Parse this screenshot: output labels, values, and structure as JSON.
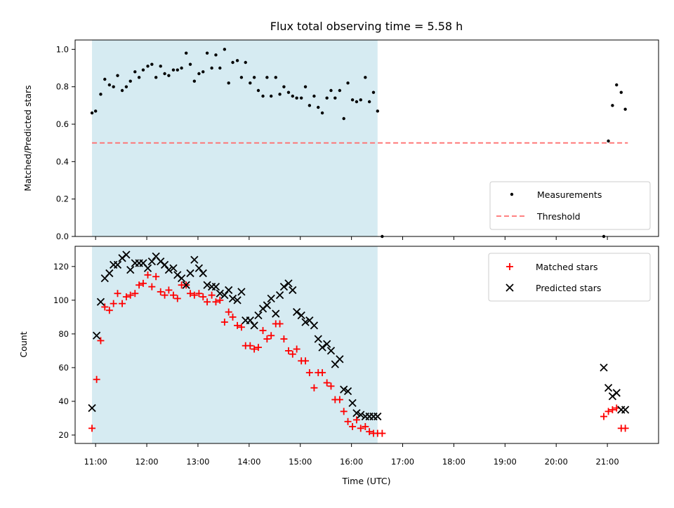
{
  "chart_data": [
    {
      "type": "scatter",
      "title": "Flux total observing time = 5.58 h",
      "xlabel": "",
      "ylabel": "Matched/Predicted stars",
      "ylim": [
        0,
        1.05
      ],
      "yticks": [
        0.0,
        0.2,
        0.4,
        0.6,
        0.8,
        1.0
      ],
      "xlim": [
        10.6,
        22.0
      ],
      "grid": false,
      "legend": "lower-right",
      "shaded_span": [
        10.93,
        16.51
      ],
      "shade_color": "#add8e6",
      "series": [
        {
          "name": "Measurements",
          "color": "#000000",
          "marker": "dot",
          "x": [
            10.93,
            11.0,
            11.1,
            11.18,
            11.27,
            11.35,
            11.43,
            11.52,
            11.6,
            11.68,
            11.77,
            11.85,
            11.93,
            12.02,
            12.1,
            12.18,
            12.27,
            12.35,
            12.43,
            12.52,
            12.6,
            12.68,
            12.77,
            12.85,
            12.93,
            13.02,
            13.1,
            13.18,
            13.27,
            13.35,
            13.43,
            13.52,
            13.6,
            13.68,
            13.77,
            13.85,
            13.93,
            14.02,
            14.1,
            14.18,
            14.27,
            14.35,
            14.43,
            14.52,
            14.6,
            14.68,
            14.77,
            14.85,
            14.93,
            15.02,
            15.1,
            15.18,
            15.27,
            15.35,
            15.43,
            15.52,
            15.6,
            15.68,
            15.77,
            15.85,
            15.93,
            16.02,
            16.1,
            16.18,
            16.27,
            16.35,
            16.43,
            16.51,
            16.6,
            20.93,
            21.02,
            21.1,
            21.18,
            21.27,
            21.35
          ],
          "y": [
            0.66,
            0.67,
            0.76,
            0.84,
            0.81,
            0.8,
            0.86,
            0.78,
            0.8,
            0.83,
            0.88,
            0.85,
            0.89,
            0.91,
            0.92,
            0.85,
            0.91,
            0.87,
            0.86,
            0.89,
            0.89,
            0.9,
            0.98,
            0.92,
            0.83,
            0.87,
            0.88,
            0.98,
            0.9,
            0.97,
            0.9,
            1.0,
            0.82,
            0.93,
            0.94,
            0.85,
            0.93,
            0.82,
            0.85,
            0.78,
            0.75,
            0.85,
            0.75,
            0.85,
            0.76,
            0.8,
            0.77,
            0.75,
            0.74,
            0.74,
            0.8,
            0.7,
            0.75,
            0.69,
            0.66,
            0.74,
            0.78,
            0.74,
            0.78,
            0.63,
            0.82,
            0.73,
            0.72,
            0.73,
            0.85,
            0.72,
            0.77,
            0.67,
            0.0,
            0.0,
            0.51,
            0.7,
            0.81,
            0.77,
            0.68
          ]
        },
        {
          "name": "Threshold",
          "color": "#ff7070",
          "style": "dashed",
          "x": [
            10.93,
            21.4
          ],
          "y": [
            0.5,
            0.5
          ]
        }
      ]
    },
    {
      "type": "scatter",
      "title": "",
      "xlabel": "Time (UTC)",
      "ylabel": "Count",
      "ylim": [
        15,
        132
      ],
      "yticks": [
        20,
        40,
        60,
        80,
        100,
        120
      ],
      "xlim": [
        10.6,
        22.0
      ],
      "xticks": [
        11,
        12,
        13,
        14,
        15,
        16,
        17,
        18,
        19,
        20,
        21
      ],
      "xtick_labels": [
        "11:00",
        "12:00",
        "13:00",
        "14:00",
        "15:00",
        "16:00",
        "17:00",
        "18:00",
        "19:00",
        "20:00",
        "21:00"
      ],
      "grid": false,
      "legend": "upper-right",
      "shaded_span": [
        10.93,
        16.51
      ],
      "shade_color": "#add8e6",
      "series": [
        {
          "name": "Matched stars",
          "color": "#ff0000",
          "marker": "plus",
          "x": [
            10.93,
            11.02,
            11.1,
            11.18,
            11.27,
            11.35,
            11.43,
            11.52,
            11.6,
            11.68,
            11.77,
            11.85,
            11.93,
            12.02,
            12.1,
            12.18,
            12.27,
            12.35,
            12.43,
            12.52,
            12.6,
            12.68,
            12.77,
            12.85,
            12.93,
            13.02,
            13.1,
            13.18,
            13.27,
            13.35,
            13.43,
            13.52,
            13.6,
            13.68,
            13.77,
            13.85,
            13.93,
            14.02,
            14.1,
            14.18,
            14.27,
            14.35,
            14.43,
            14.52,
            14.6,
            14.68,
            14.77,
            14.85,
            14.93,
            15.02,
            15.1,
            15.18,
            15.27,
            15.35,
            15.43,
            15.52,
            15.6,
            15.68,
            15.77,
            15.85,
            15.93,
            16.02,
            16.1,
            16.18,
            16.27,
            16.35,
            16.43,
            16.51,
            16.6,
            20.93,
            21.02,
            21.1,
            21.18,
            21.27,
            21.35
          ],
          "y": [
            24,
            53,
            76,
            96,
            94,
            98,
            104,
            98,
            102,
            103,
            104,
            109,
            110,
            115,
            108,
            114,
            105,
            103,
            106,
            103,
            101,
            109,
            109,
            104,
            103,
            104,
            102,
            99,
            103,
            99,
            100,
            87,
            93,
            90,
            85,
            84,
            73,
            73,
            71,
            72,
            82,
            77,
            79,
            86,
            86,
            77,
            70,
            68,
            71,
            64,
            64,
            57,
            48,
            57,
            57,
            51,
            49,
            41,
            41,
            34,
            28,
            25,
            29,
            24,
            25,
            22,
            21,
            21,
            21,
            31,
            34,
            35,
            36,
            24,
            24
          ],
          "visible_x_subset_note": ""
        },
        {
          "name": "Predicted stars",
          "color": "#000000",
          "marker": "x",
          "x": [
            10.93,
            11.02,
            11.1,
            11.18,
            11.27,
            11.35,
            11.43,
            11.52,
            11.6,
            11.68,
            11.77,
            11.85,
            11.93,
            12.02,
            12.1,
            12.18,
            12.27,
            12.35,
            12.43,
            12.52,
            12.6,
            12.68,
            12.77,
            12.85,
            12.93,
            13.02,
            13.1,
            13.18,
            13.27,
            13.35,
            13.43,
            13.52,
            13.6,
            13.68,
            13.77,
            13.85,
            13.93,
            14.02,
            14.1,
            14.18,
            14.27,
            14.35,
            14.43,
            14.52,
            14.6,
            14.68,
            14.77,
            14.85,
            14.93,
            15.02,
            15.1,
            15.18,
            15.27,
            15.35,
            15.43,
            15.52,
            15.6,
            15.68,
            15.77,
            15.85,
            15.93,
            16.02,
            16.1,
            16.18,
            16.27,
            16.35,
            16.43,
            16.51,
            20.93,
            21.02,
            21.1,
            21.18,
            21.27,
            21.35
          ],
          "y": [
            36,
            79,
            99,
            113,
            116,
            121,
            121,
            125,
            127,
            118,
            122,
            122,
            122,
            119,
            123,
            126,
            123,
            121,
            118,
            119,
            115,
            113,
            109,
            116,
            124,
            119,
            116,
            109,
            108,
            108,
            104,
            103,
            106,
            101,
            100,
            105,
            88,
            88,
            85,
            91,
            95,
            97,
            101,
            92,
            103,
            108,
            110,
            106,
            93,
            91,
            87,
            88,
            85,
            77,
            72,
            74,
            70,
            62,
            65,
            47,
            46,
            39,
            33,
            32,
            31,
            31,
            31,
            31,
            60,
            48,
            43,
            45,
            35,
            35
          ]
        }
      ]
    }
  ]
}
